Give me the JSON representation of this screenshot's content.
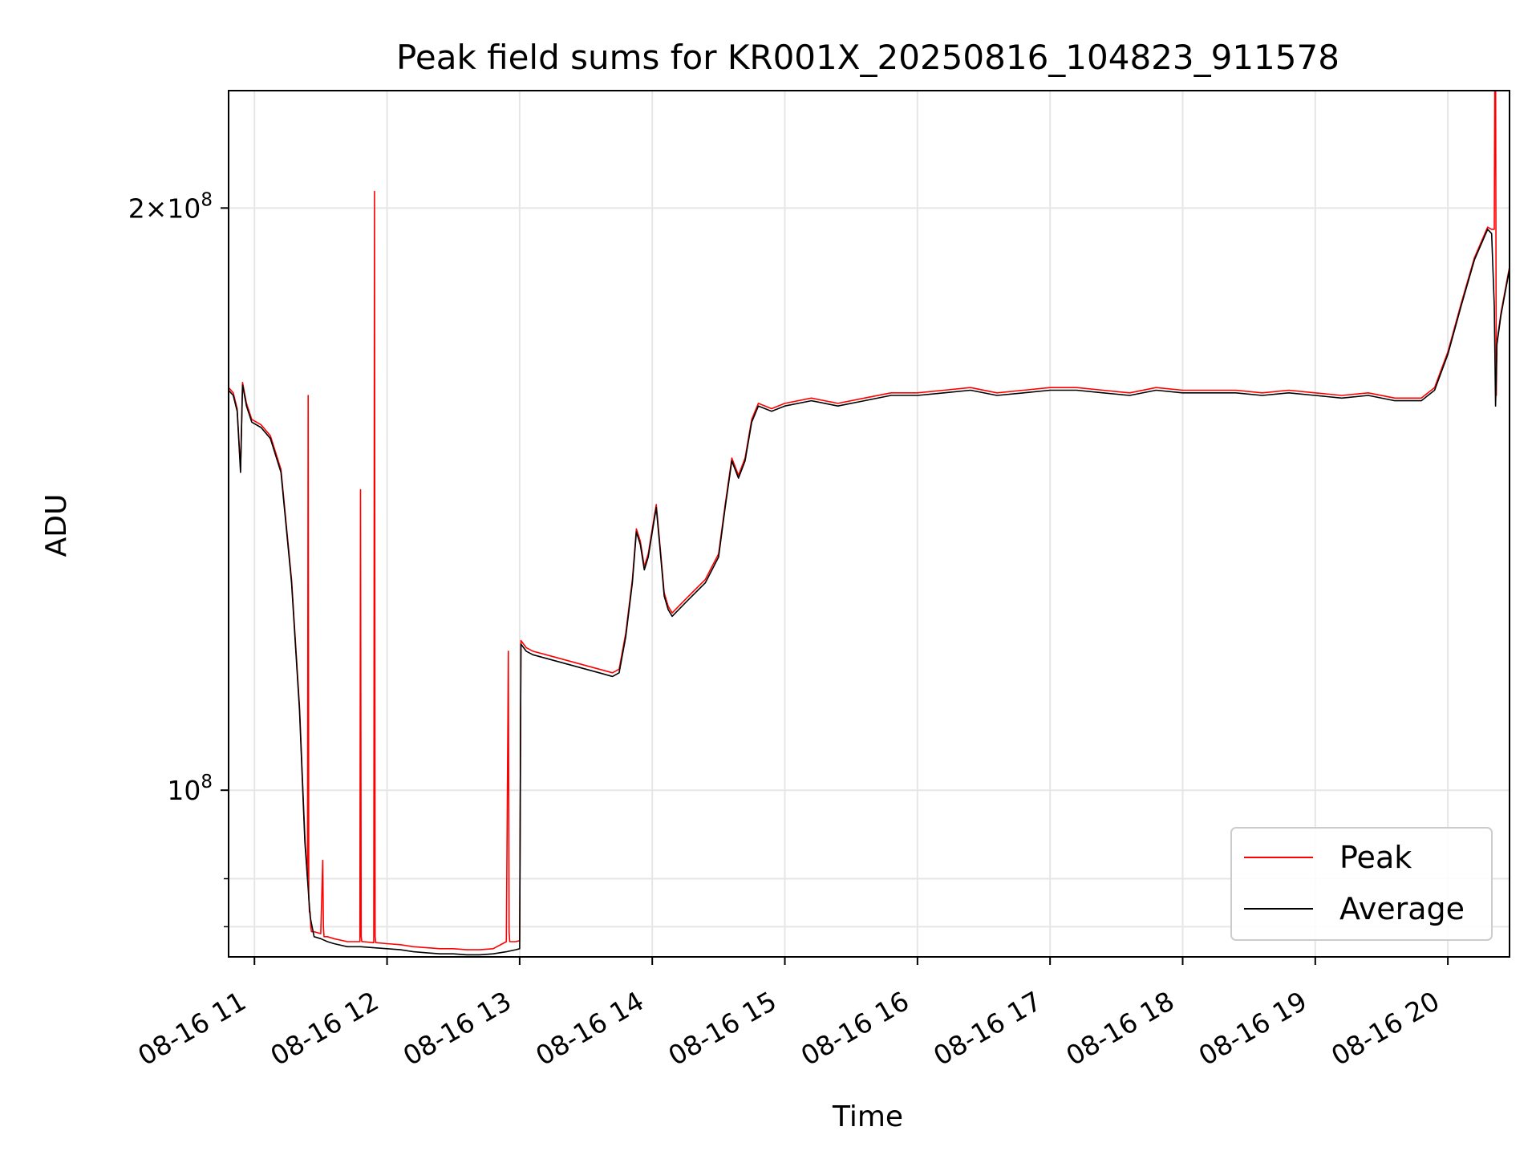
{
  "chart_data": {
    "type": "line",
    "title": "Peak field sums for KR001X_20250816_104823_911578",
    "xlabel": "Time",
    "ylabel": "ADU",
    "x_unit": "hour",
    "x_tick_values": [
      11,
      12,
      13,
      14,
      15,
      16,
      17,
      18,
      19,
      20
    ],
    "x_tick_labels": [
      "08-16 11",
      "08-16 12",
      "08-16 13",
      "08-16 14",
      "08-16 15",
      "08-16 16",
      "08-16 17",
      "08-16 18",
      "08-16 19",
      "08-16 20"
    ],
    "xlim": [
      10.805,
      20.465
    ],
    "y_scale": "log",
    "ylim": [
      82000000,
      230000000
    ],
    "y_ticks_major": [
      {
        "value": 100000000,
        "label_base": "10",
        "label_exp": "8",
        "label_mult": ""
      },
      {
        "value": 200000000,
        "label_base": "10",
        "label_exp": "8",
        "label_mult": "2×"
      }
    ],
    "y_ticks_minor": [
      85000000,
      90000000
    ],
    "grid": true,
    "legend": {
      "position": "lower-right",
      "entries": [
        "Peak",
        "Average"
      ]
    },
    "colors": {
      "Peak": "#ff0000",
      "Average": "#000000"
    },
    "series": [
      {
        "name": "Average",
        "x": [
          10.805,
          10.84,
          10.87,
          10.895,
          10.91,
          10.94,
          10.98,
          11.05,
          11.12,
          11.2,
          11.28,
          11.34,
          11.38,
          11.42,
          11.45,
          11.5,
          11.55,
          11.6,
          11.7,
          11.8,
          11.9,
          12.0,
          12.1,
          12.2,
          12.3,
          12.4,
          12.5,
          12.6,
          12.7,
          12.8,
          12.9,
          12.97,
          13.0,
          13.01,
          13.05,
          13.1,
          13.2,
          13.3,
          13.4,
          13.5,
          13.6,
          13.7,
          13.75,
          13.8,
          13.85,
          13.88,
          13.91,
          13.94,
          13.97,
          14.0,
          14.03,
          14.06,
          14.09,
          14.12,
          14.15,
          14.2,
          14.25,
          14.3,
          14.4,
          14.5,
          14.55,
          14.6,
          14.65,
          14.7,
          14.75,
          14.8,
          14.9,
          15.0,
          15.2,
          15.4,
          15.6,
          15.8,
          16.0,
          16.2,
          16.4,
          16.6,
          16.8,
          17.0,
          17.2,
          17.4,
          17.6,
          17.8,
          18.0,
          18.2,
          18.4,
          18.6,
          18.8,
          19.0,
          19.2,
          19.4,
          19.6,
          19.8,
          19.9,
          20.0,
          20.1,
          20.2,
          20.3,
          20.33,
          20.35,
          20.36,
          20.37,
          20.4,
          20.465
        ],
        "values": [
          161000000,
          160000000,
          157000000,
          146000000,
          162000000,
          158000000,
          155000000,
          154000000,
          152000000,
          146000000,
          128000000,
          110000000,
          94000000,
          86000000,
          84000000,
          83800000,
          83500000,
          83300000,
          83000000,
          83000000,
          82900000,
          82800000,
          82700000,
          82500000,
          82400000,
          82300000,
          82300000,
          82200000,
          82200000,
          82300000,
          82500000,
          82700000,
          82800000,
          119000000,
          118000000,
          117500000,
          117000000,
          116500000,
          116000000,
          115500000,
          115000000,
          114500000,
          115000000,
          120000000,
          128000000,
          136000000,
          134000000,
          130000000,
          132000000,
          136000000,
          140000000,
          133000000,
          126000000,
          124000000,
          123000000,
          124000000,
          125000000,
          126000000,
          128000000,
          132000000,
          140000000,
          148000000,
          145000000,
          148000000,
          155000000,
          158000000,
          157000000,
          158000000,
          159000000,
          158000000,
          159000000,
          160000000,
          160000000,
          160500000,
          161000000,
          160000000,
          160500000,
          161000000,
          161000000,
          160500000,
          160000000,
          161000000,
          160500000,
          160500000,
          160500000,
          160000000,
          160500000,
          160000000,
          159500000,
          160000000,
          159000000,
          159000000,
          161000000,
          168000000,
          178000000,
          188000000,
          195000000,
          194000000,
          178000000,
          158000000,
          170000000,
          176000000,
          186000000
        ]
      },
      {
        "name": "Peak",
        "x": [
          10.805,
          10.84,
          10.87,
          10.895,
          10.91,
          10.94,
          10.98,
          11.05,
          11.12,
          11.2,
          11.28,
          11.34,
          11.38,
          11.4,
          11.405,
          11.41,
          11.415,
          11.42,
          11.425,
          11.43,
          11.45,
          11.5,
          11.515,
          11.52,
          11.525,
          11.53,
          11.55,
          11.6,
          11.7,
          11.795,
          11.8,
          11.805,
          11.81,
          11.815,
          11.82,
          11.9,
          11.905,
          11.91,
          11.915,
          11.92,
          12.0,
          12.1,
          12.2,
          12.3,
          12.4,
          12.5,
          12.6,
          12.7,
          12.8,
          12.9,
          12.915,
          12.92,
          12.925,
          12.93,
          12.97,
          13.0,
          13.01,
          13.05,
          13.1,
          13.2,
          13.3,
          13.4,
          13.5,
          13.6,
          13.7,
          13.75,
          13.8,
          13.85,
          13.88,
          13.91,
          13.94,
          13.97,
          14.0,
          14.03,
          14.06,
          14.09,
          14.12,
          14.15,
          14.2,
          14.25,
          14.3,
          14.4,
          14.5,
          14.55,
          14.6,
          14.65,
          14.7,
          14.75,
          14.8,
          14.9,
          15.0,
          15.2,
          15.4,
          15.6,
          15.8,
          16.0,
          16.2,
          16.4,
          16.6,
          16.8,
          17.0,
          17.2,
          17.4,
          17.6,
          17.8,
          18.0,
          18.2,
          18.4,
          18.6,
          18.8,
          19.0,
          19.2,
          19.4,
          19.6,
          19.8,
          19.9,
          20.0,
          20.1,
          20.2,
          20.3,
          20.33,
          20.35,
          20.355,
          20.36,
          20.365,
          20.37,
          20.4,
          20.465
        ],
        "values": [
          161500000,
          160500000,
          157500000,
          146500000,
          162500000,
          158500000,
          155500000,
          154500000,
          152500000,
          146500000,
          128500000,
          110500000,
          94500000,
          90000000,
          160000000,
          88000000,
          86500000,
          86500000,
          85000000,
          84500000,
          84500000,
          84300000,
          92000000,
          85000000,
          84000000,
          84000000,
          84000000,
          83800000,
          83500000,
          83500000,
          143000000,
          84000000,
          83500000,
          83500000,
          83500000,
          83400000,
          204000000,
          84000000,
          83400000,
          83400000,
          83300000,
          83200000,
          83000000,
          82900000,
          82800000,
          82800000,
          82700000,
          82700000,
          82800000,
          83500000,
          118000000,
          84500000,
          83500000,
          83500000,
          83500000,
          83600000,
          119500000,
          118500000,
          118000000,
          117500000,
          117000000,
          116500000,
          116000000,
          115500000,
          115000000,
          115500000,
          120500000,
          128500000,
          136500000,
          134500000,
          130500000,
          132500000,
          136500000,
          140500000,
          133500000,
          126500000,
          124500000,
          123500000,
          124500000,
          125500000,
          126500000,
          128500000,
          132500000,
          140500000,
          148500000,
          145500000,
          148500000,
          155500000,
          158500000,
          157500000,
          158500000,
          159500000,
          158500000,
          159500000,
          160500000,
          160500000,
          161000000,
          161500000,
          160500000,
          161000000,
          161500000,
          161500000,
          161000000,
          160500000,
          161500000,
          161000000,
          161000000,
          161000000,
          160500000,
          161000000,
          160500000,
          160000000,
          160500000,
          159500000,
          159500000,
          161500000,
          168500000,
          178500000,
          188500000,
          195500000,
          195000000,
          195000000,
          240000000,
          240000000,
          160000000,
          170500000,
          176500000,
          186500000
        ]
      }
    ]
  }
}
